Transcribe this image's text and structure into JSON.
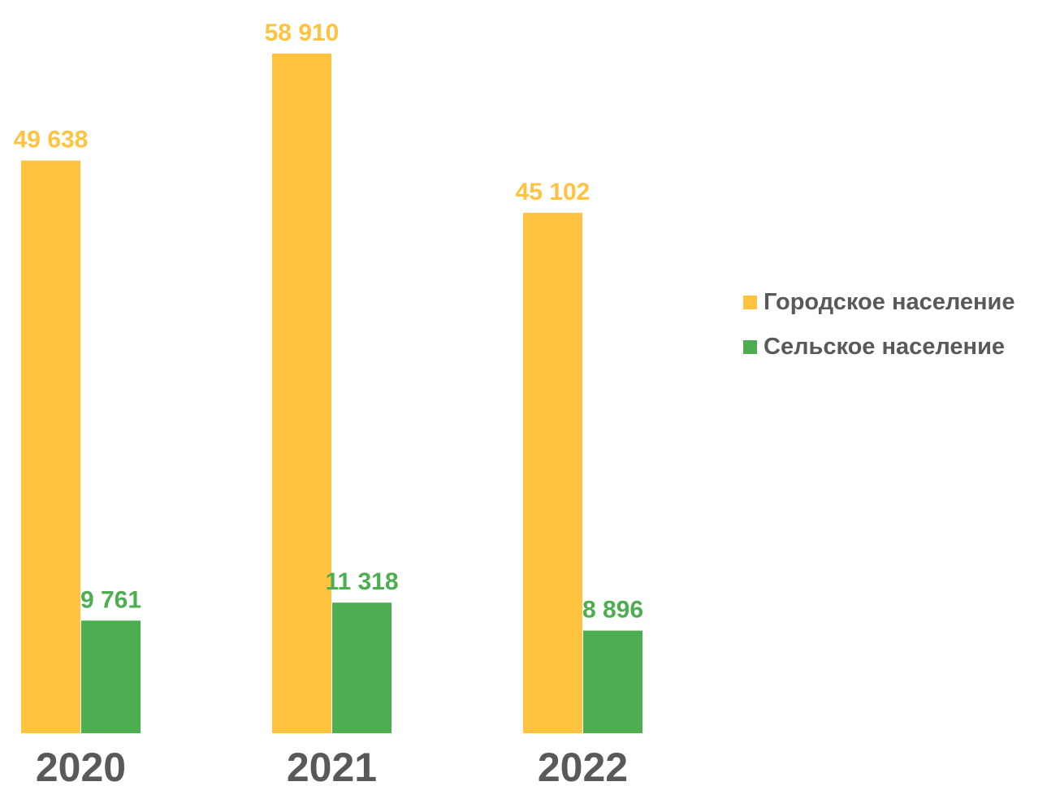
{
  "chart_data": {
    "type": "bar",
    "categories": [
      "2020",
      "2021",
      "2022"
    ],
    "series": [
      {
        "name": "Городское население",
        "values": [
          49638,
          58910,
          45102
        ],
        "labels": [
          "49 638",
          "58 910",
          "45 102"
        ],
        "color": "#FFC33F"
      },
      {
        "name": "Сельское население",
        "values": [
          9761,
          11318,
          8896
        ],
        "labels": [
          "9 761",
          "11 318",
          "8 896"
        ],
        "color": "#4CAE50"
      }
    ],
    "title": "",
    "xlabel": "",
    "ylabel": "",
    "ylim": [
      0,
      62000
    ],
    "grid": false,
    "legend_position": "right"
  }
}
